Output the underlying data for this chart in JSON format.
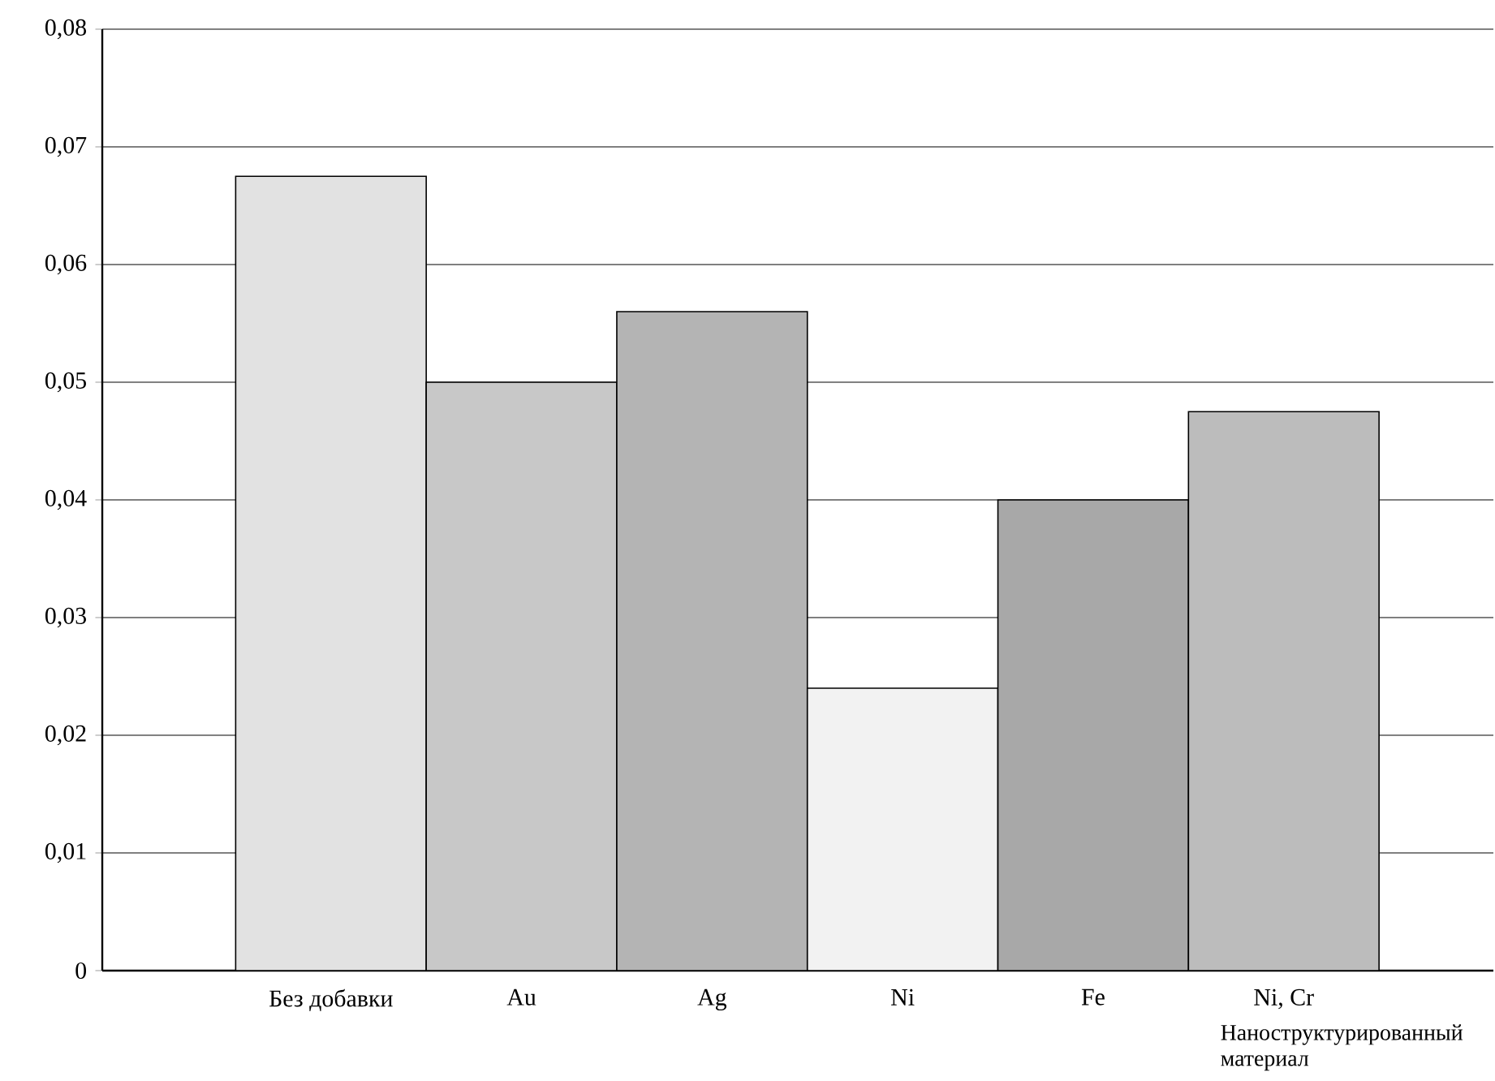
{
  "chart_data": {
    "type": "bar",
    "xlabel": "Наноструктурированный материал",
    "categories": [
      "Без добавки",
      "Au",
      "Ag",
      "Ni",
      "Fe",
      "Ni, Cr"
    ],
    "values": [
      0.0675,
      0.05,
      0.056,
      0.024,
      0.04,
      0.0475
    ],
    "colors": [
      "#e2e2e2",
      "#c8c8c8",
      "#b4b4b4",
      "#f2f2f2",
      "#a8a8a8",
      "#bcbcbc"
    ],
    "ylim": [
      0,
      0.08
    ],
    "yticks": [
      {
        "value": 0,
        "label": "0"
      },
      {
        "value": 0.01,
        "label": "0,01"
      },
      {
        "value": 0.02,
        "label": "0,02"
      },
      {
        "value": 0.03,
        "label": "0,03"
      },
      {
        "value": 0.04,
        "label": "0,04"
      },
      {
        "value": 0.05,
        "label": "0,05"
      },
      {
        "value": 0.06,
        "label": "0,06"
      },
      {
        "value": 0.07,
        "label": "0,07"
      },
      {
        "value": 0.08,
        "label": "0,08"
      }
    ],
    "grid": "y"
  }
}
